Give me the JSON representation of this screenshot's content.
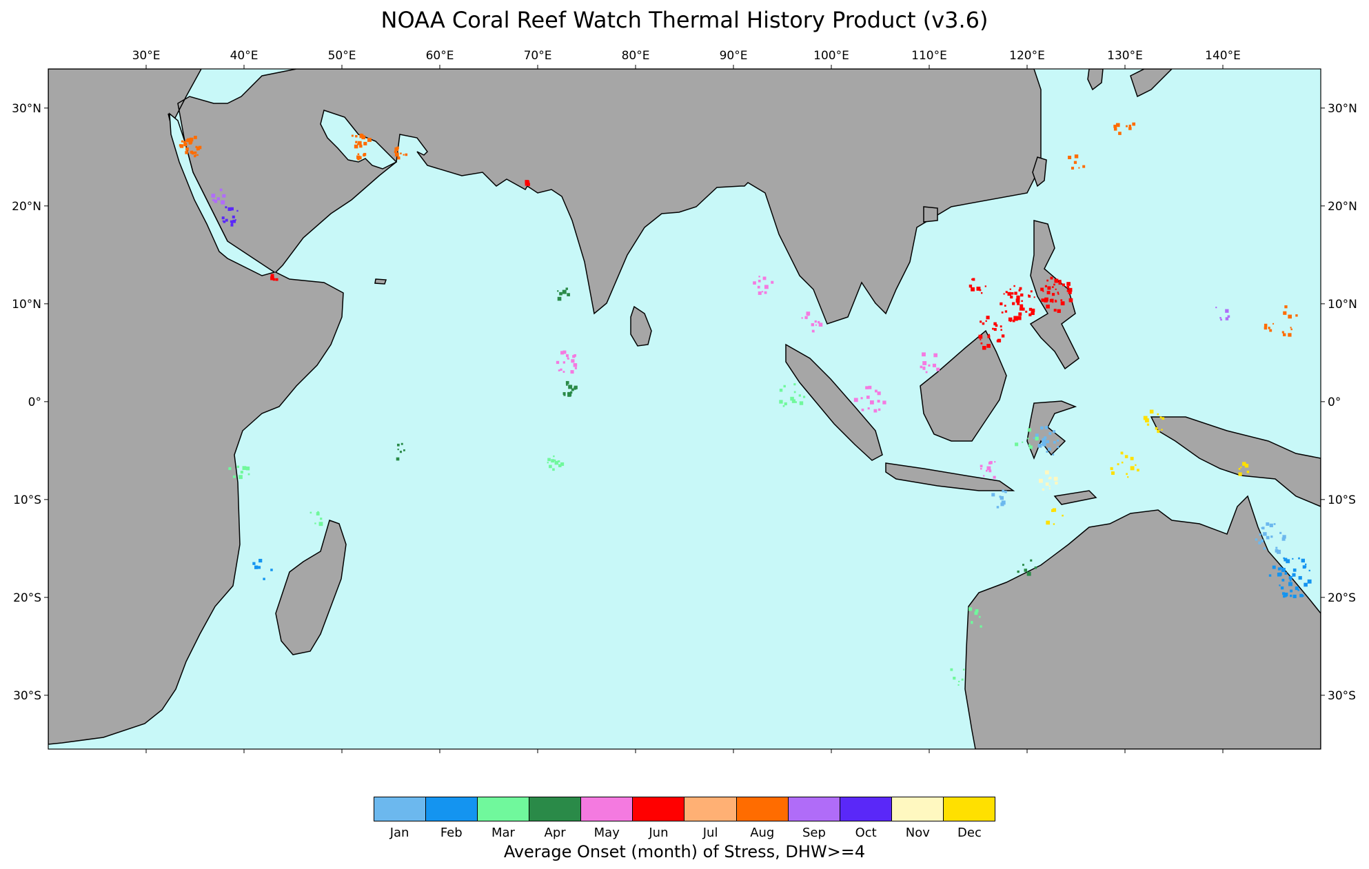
{
  "title": "NOAA Coral Reef Watch Thermal History Product (v3.6)",
  "map": {
    "lon_range": [
      20,
      150
    ],
    "lat_range": [
      -35.5,
      34
    ],
    "ocean_color": "#c8f8f8",
    "land_color": "#a6a6a6",
    "coast_color": "#000000",
    "lon_ticks": [
      {
        "value": 30,
        "label": "30°E"
      },
      {
        "value": 40,
        "label": "40°E"
      },
      {
        "value": 50,
        "label": "50°E"
      },
      {
        "value": 60,
        "label": "60°E"
      },
      {
        "value": 70,
        "label": "70°E"
      },
      {
        "value": 80,
        "label": "80°E"
      },
      {
        "value": 90,
        "label": "90°E"
      },
      {
        "value": 100,
        "label": "100°E"
      },
      {
        "value": 110,
        "label": "110°E"
      },
      {
        "value": 120,
        "label": "120°E"
      },
      {
        "value": 130,
        "label": "130°E"
      },
      {
        "value": 140,
        "label": "140°E"
      }
    ],
    "lat_ticks": [
      {
        "value": 30,
        "label": "30°N"
      },
      {
        "value": 20,
        "label": "20°N"
      },
      {
        "value": 10,
        "label": "10°N"
      },
      {
        "value": 0,
        "label": "0°"
      },
      {
        "value": -10,
        "label": "10°S"
      },
      {
        "value": -20,
        "label": "20°S"
      },
      {
        "value": -30,
        "label": "30°S"
      }
    ]
  },
  "legend": {
    "title": "Average Onset (month) of Stress, DHW>=4",
    "items": [
      {
        "label": "Jan",
        "color": "#6cb8ee"
      },
      {
        "label": "Feb",
        "color": "#1494f0"
      },
      {
        "label": "Mar",
        "color": "#70f89c"
      },
      {
        "label": "Apr",
        "color": "#2a8a48"
      },
      {
        "label": "May",
        "color": "#f47ae0"
      },
      {
        "label": "Jun",
        "color": "#ff0000"
      },
      {
        "label": "Jul",
        "color": "#ffb074"
      },
      {
        "label": "Aug",
        "color": "#ff6c00"
      },
      {
        "label": "Sep",
        "color": "#b06cf8"
      },
      {
        "label": "Oct",
        "color": "#5a28f8"
      },
      {
        "label": "Nov",
        "color": "#fff8c0"
      },
      {
        "label": "Dec",
        "color": "#ffe000"
      }
    ]
  },
  "reef_clusters": [
    {
      "month": "Aug",
      "lon": 34.5,
      "lat": 26,
      "n": 24,
      "r": 1.2
    },
    {
      "month": "Oct",
      "lon": 38.5,
      "lat": 19,
      "n": 14,
      "r": 1.0
    },
    {
      "month": "Sep",
      "lon": 37.5,
      "lat": 21,
      "n": 8,
      "r": 0.8
    },
    {
      "month": "Aug",
      "lon": 52,
      "lat": 26,
      "n": 18,
      "r": 1.5
    },
    {
      "month": "Aug",
      "lon": 56,
      "lat": 25.5,
      "n": 8,
      "r": 0.8
    },
    {
      "month": "Jun",
      "lon": 43,
      "lat": 12.5,
      "n": 4,
      "r": 0.4
    },
    {
      "month": "Jun",
      "lon": 69,
      "lat": 22.5,
      "n": 4,
      "r": 0.4
    },
    {
      "month": "May",
      "lon": 73,
      "lat": 4,
      "n": 16,
      "r": 1.2
    },
    {
      "month": "Apr",
      "lon": 73,
      "lat": 1.5,
      "n": 12,
      "r": 1.0
    },
    {
      "month": "Apr",
      "lon": 72.5,
      "lat": 11,
      "n": 6,
      "r": 0.8
    },
    {
      "month": "Mar",
      "lon": 71.8,
      "lat": -6.3,
      "n": 12,
      "r": 0.8
    },
    {
      "month": "Apr",
      "lon": 56,
      "lat": -5,
      "n": 6,
      "r": 1.0
    },
    {
      "month": "Mar",
      "lon": 39.5,
      "lat": -7,
      "n": 8,
      "r": 1.2
    },
    {
      "month": "Feb",
      "lon": 42,
      "lat": -17,
      "n": 6,
      "r": 1.2
    },
    {
      "month": "Mar",
      "lon": 47,
      "lat": -12,
      "n": 6,
      "r": 1.0
    },
    {
      "month": "May",
      "lon": 93,
      "lat": 12,
      "n": 10,
      "r": 1.0
    },
    {
      "month": "May",
      "lon": 98,
      "lat": 8,
      "n": 12,
      "r": 1.2
    },
    {
      "month": "Mar",
      "lon": 96,
      "lat": 0.5,
      "n": 14,
      "r": 1.4
    },
    {
      "month": "May",
      "lon": 104,
      "lat": 0,
      "n": 14,
      "r": 1.5
    },
    {
      "month": "May",
      "lon": 110,
      "lat": 4,
      "n": 10,
      "r": 1.2
    },
    {
      "month": "Jun",
      "lon": 119,
      "lat": 10,
      "n": 40,
      "r": 2.0
    },
    {
      "month": "Jun",
      "lon": 123,
      "lat": 11,
      "n": 36,
      "r": 1.8
    },
    {
      "month": "Jun",
      "lon": 116,
      "lat": 7,
      "n": 20,
      "r": 1.6
    },
    {
      "month": "Jun",
      "lon": 115,
      "lat": 12,
      "n": 8,
      "r": 1.0
    },
    {
      "month": "Aug",
      "lon": 130,
      "lat": 28,
      "n": 8,
      "r": 1.2
    },
    {
      "month": "Aug",
      "lon": 125,
      "lat": 24.5,
      "n": 6,
      "r": 1.0
    },
    {
      "month": "Aug",
      "lon": 146,
      "lat": 8,
      "n": 14,
      "r": 1.8
    },
    {
      "month": "Sep",
      "lon": 140,
      "lat": 9,
      "n": 6,
      "r": 1.0
    },
    {
      "month": "Dec",
      "lon": 130,
      "lat": -6.5,
      "n": 14,
      "r": 1.5
    },
    {
      "month": "Dec",
      "lon": 133,
      "lat": -2,
      "n": 10,
      "r": 1.2
    },
    {
      "month": "Dec",
      "lon": 123,
      "lat": -12,
      "n": 6,
      "r": 1.0
    },
    {
      "month": "Nov",
      "lon": 122,
      "lat": -8,
      "n": 10,
      "r": 1.2
    },
    {
      "month": "Jan",
      "lon": 122,
      "lat": -4,
      "n": 18,
      "r": 1.6
    },
    {
      "month": "Mar",
      "lon": 120,
      "lat": -4,
      "n": 10,
      "r": 1.2
    },
    {
      "month": "May",
      "lon": 116,
      "lat": -7,
      "n": 10,
      "r": 1.2
    },
    {
      "month": "Feb",
      "lon": 147,
      "lat": -18,
      "n": 40,
      "r": 2.2
    },
    {
      "month": "Jan",
      "lon": 145,
      "lat": -14,
      "n": 20,
      "r": 1.6
    },
    {
      "month": "Mar",
      "lon": 115,
      "lat": -22,
      "n": 8,
      "r": 1.2
    },
    {
      "month": "Apr",
      "lon": 120,
      "lat": -17,
      "n": 6,
      "r": 1.0
    },
    {
      "month": "Dec",
      "lon": 142,
      "lat": -7,
      "n": 6,
      "r": 1.0
    },
    {
      "month": "Jan",
      "lon": 117,
      "lat": -10,
      "n": 8,
      "r": 1.2
    },
    {
      "month": "Mar",
      "lon": 113,
      "lat": -28,
      "n": 6,
      "r": 1.0
    }
  ]
}
